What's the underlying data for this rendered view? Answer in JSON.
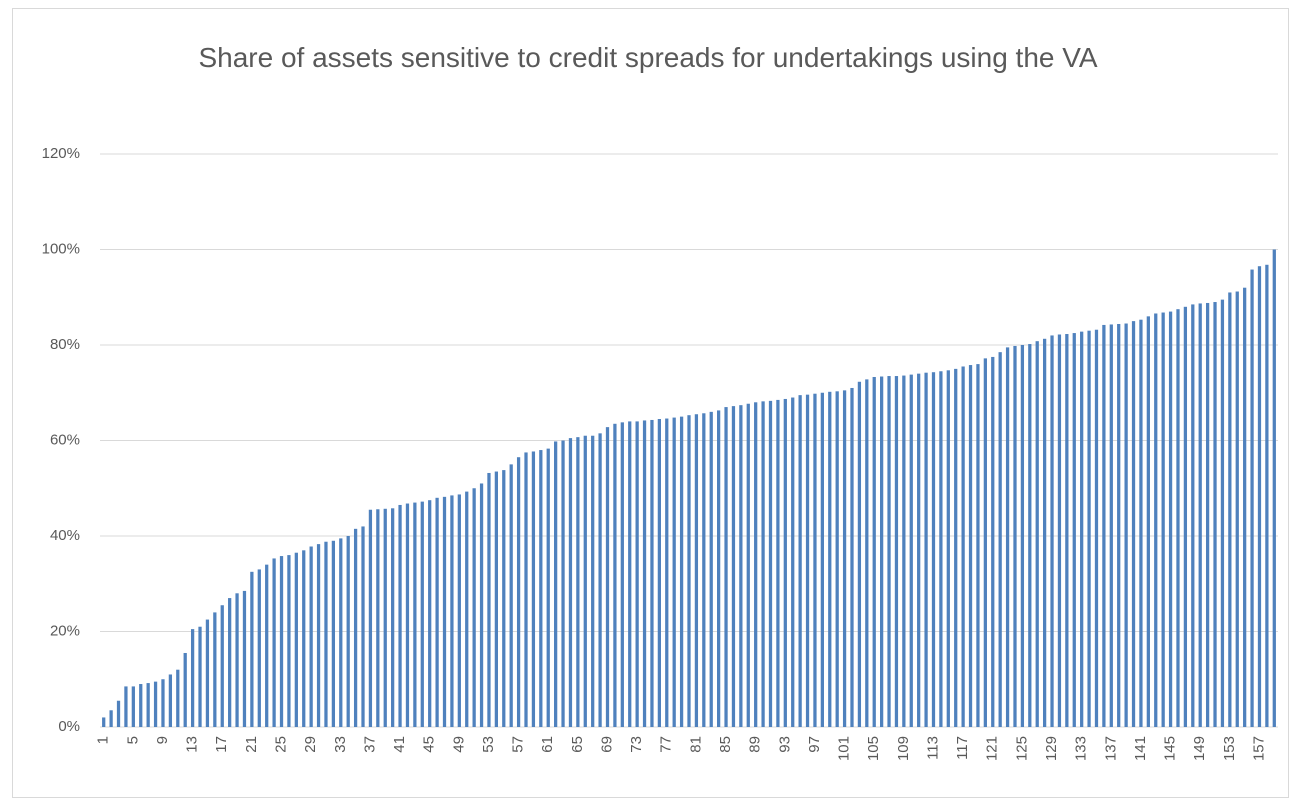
{
  "chart_data": {
    "type": "bar",
    "title": "Share of assets sensitive to credit spreads for undertakings using the VA",
    "color": "#4f81bd",
    "grid": true,
    "ylim": [
      0,
      120
    ],
    "yticks": [
      {
        "value": 0,
        "label": "0%"
      },
      {
        "value": 20,
        "label": "20%"
      },
      {
        "value": 40,
        "label": "40%"
      },
      {
        "value": 60,
        "label": "60%"
      },
      {
        "value": 80,
        "label": "80%"
      },
      {
        "value": 100,
        "label": "100%"
      },
      {
        "value": 120,
        "label": "120%"
      }
    ],
    "categories": [
      "1",
      null,
      null,
      null,
      "5",
      null,
      null,
      null,
      "9",
      null,
      null,
      null,
      "13",
      null,
      null,
      null,
      "17",
      null,
      null,
      null,
      "21",
      null,
      null,
      null,
      "25",
      null,
      null,
      null,
      "29",
      null,
      null,
      null,
      "33",
      null,
      null,
      null,
      "37",
      null,
      null,
      null,
      "41",
      null,
      null,
      null,
      "45",
      null,
      null,
      null,
      "49",
      null,
      null,
      null,
      "53",
      null,
      null,
      null,
      "57",
      null,
      null,
      null,
      "61",
      null,
      null,
      null,
      "65",
      null,
      null,
      null,
      "69",
      null,
      null,
      null,
      "73",
      null,
      null,
      null,
      "77",
      null,
      null,
      null,
      "81",
      null,
      null,
      null,
      "85",
      null,
      null,
      null,
      "89",
      null,
      null,
      null,
      "93",
      null,
      null,
      null,
      "97",
      null,
      null,
      null,
      "101",
      null,
      null,
      null,
      "105",
      null,
      null,
      null,
      "109",
      null,
      null,
      null,
      "113",
      null,
      null,
      null,
      "117",
      null,
      null,
      null,
      "121",
      null,
      null,
      null,
      "125",
      null,
      null,
      null,
      "129",
      null,
      null,
      null,
      "133",
      null,
      null,
      null,
      "137",
      null,
      null,
      null,
      "141",
      null,
      null,
      null,
      "145",
      null,
      null,
      null,
      "149",
      null,
      null,
      null,
      "153",
      null,
      null,
      null,
      "157",
      null,
      null
    ],
    "values": [
      2,
      3.5,
      5.5,
      8.5,
      8.5,
      9,
      9.2,
      9.5,
      10,
      11,
      12,
      15.5,
      20.5,
      21,
      22.5,
      24,
      25.5,
      27,
      28,
      28.5,
      32.5,
      33,
      34,
      35.3,
      35.8,
      36,
      36.5,
      37,
      37.8,
      38.3,
      38.8,
      39,
      39.5,
      40,
      41.5,
      42,
      45.5,
      45.6,
      45.7,
      45.8,
      46.5,
      46.8,
      47,
      47.2,
      47.5,
      48,
      48.2,
      48.5,
      48.7,
      49.3,
      50,
      51,
      53.2,
      53.5,
      53.8,
      55,
      56.5,
      57.5,
      57.7,
      58,
      58.3,
      59.8,
      60,
      60.5,
      60.7,
      61,
      61,
      61.5,
      62.8,
      63.5,
      63.8,
      64,
      64,
      64.2,
      64.3,
      64.5,
      64.6,
      64.8,
      65,
      65.3,
      65.5,
      65.7,
      66,
      66.3,
      67,
      67.2,
      67.4,
      67.7,
      68,
      68.2,
      68.3,
      68.5,
      68.7,
      69,
      69.5,
      69.6,
      69.8,
      70,
      70.2,
      70.3,
      70.5,
      71,
      72.3,
      72.8,
      73.3,
      73.4,
      73.5,
      73.5,
      73.6,
      73.8,
      74,
      74.2,
      74.3,
      74.5,
      74.7,
      75,
      75.5,
      75.8,
      76,
      77.2,
      77.5,
      78.5,
      79.5,
      79.8,
      80,
      80.2,
      80.8,
      81.3,
      82,
      82.2,
      82.3,
      82.5,
      82.8,
      83,
      83.2,
      84.2,
      84.3,
      84.4,
      84.5,
      85,
      85.3,
      86,
      86.6,
      86.8,
      87,
      87.5,
      88,
      88.5,
      88.7,
      88.8,
      89,
      89.5,
      91,
      91.2,
      92,
      95.8,
      96.5,
      96.8,
      100
    ]
  }
}
